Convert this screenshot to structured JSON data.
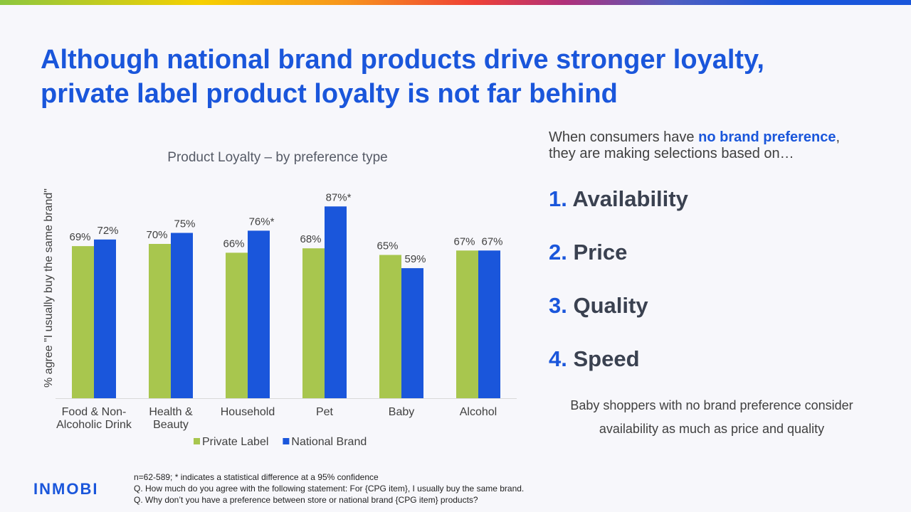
{
  "title": {
    "line1": "Although national brand products drive stronger loyalty,",
    "line2": "private label product loyalty is not far behind"
  },
  "chart_data": {
    "type": "bar",
    "title": "Product Loyalty – by preference type",
    "ylabel": "% agree \"I usually buy the same brand\"",
    "ylim": [
      0,
      100
    ],
    "grid": false,
    "legend_position": "bottom",
    "categories": [
      [
        "Food & Non-",
        "Alcoholic Drink"
      ],
      [
        "Health &",
        "Beauty"
      ],
      [
        "Household"
      ],
      [
        "Pet"
      ],
      [
        "Baby"
      ],
      [
        "Alcohol"
      ]
    ],
    "series": [
      {
        "name": "Private Label",
        "color": "#a8c64e",
        "values": [
          69,
          70,
          66,
          68,
          65,
          67
        ],
        "labels": [
          "69%",
          "70%",
          "66%",
          "68%",
          "65%",
          "67%"
        ]
      },
      {
        "name": "National Brand",
        "color": "#1a56db",
        "values": [
          72,
          75,
          76,
          87,
          59,
          67
        ],
        "labels": [
          "72%",
          "75%",
          "76%*",
          "87%*",
          "59%",
          "67%"
        ]
      }
    ]
  },
  "intro": {
    "prefix": "When consumers have ",
    "highlight": "no brand preference",
    "suffix": ",",
    "line2": "they are making selections based on…"
  },
  "ranks": [
    {
      "num": "1.",
      "label": "Availability"
    },
    {
      "num": "2.",
      "label": "Price"
    },
    {
      "num": "3.",
      "label": "Quality"
    },
    {
      "num": "4.",
      "label": "Speed"
    }
  ],
  "note": {
    "line1": "Baby shoppers with no brand preference consider",
    "line2": "availability as much as price and quality"
  },
  "footer": {
    "logo": "INMOBI",
    "line1": "n=62-589; * indicates a statistical difference at a 95% confidence",
    "line2": "Q. How much do you agree with the following statement: For {CPG item}, I usually buy the same brand.",
    "line3": "Q. Why don’t you have a preference between store or national brand {CPG item} products?"
  },
  "colors": {
    "accent": "#1a56db",
    "private_label": "#a8c64e",
    "national_brand": "#1a56db"
  }
}
